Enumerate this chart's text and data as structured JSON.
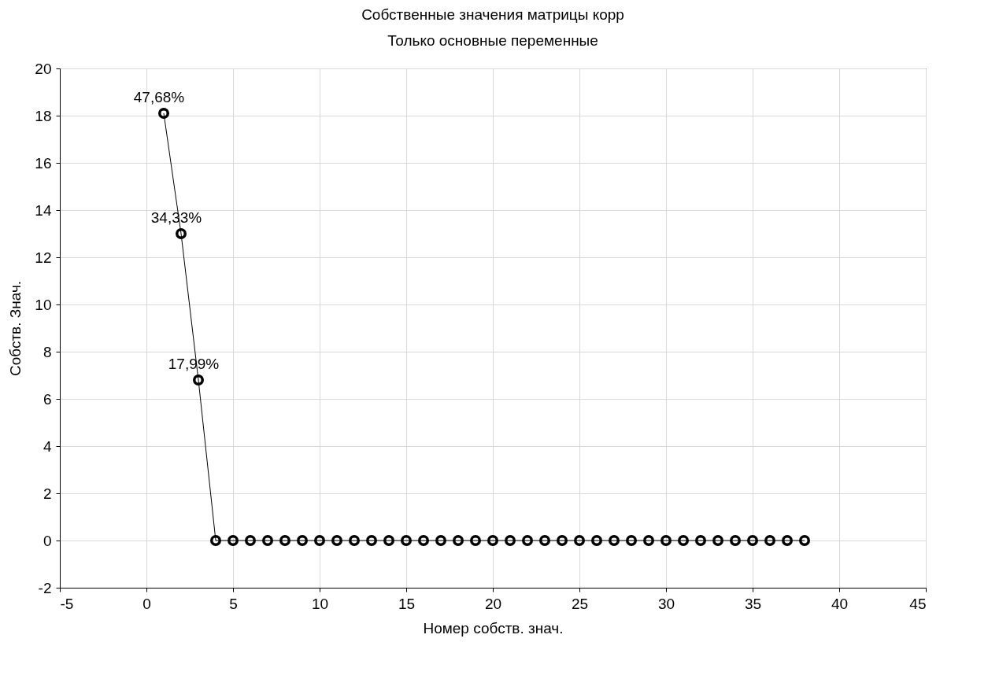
{
  "chart_data": {
    "type": "line",
    "title": "Собственные значения матрицы корр",
    "subtitle": "Только основные переменные",
    "xlabel": "Номер собств. знач.",
    "ylabel": "Собств. Знач.",
    "x": [
      1,
      2,
      3,
      4,
      5,
      6,
      7,
      8,
      9,
      10,
      11,
      12,
      13,
      14,
      15,
      16,
      17,
      18,
      19,
      20,
      21,
      22,
      23,
      24,
      25,
      26,
      27,
      28,
      29,
      30,
      31,
      32,
      33,
      34,
      35,
      36,
      37,
      38
    ],
    "series": [
      {
        "color": "#000000",
        "values": [
          18.1,
          13.0,
          6.8,
          0,
          0,
          0,
          0,
          0,
          0,
          0,
          0,
          0,
          0,
          0,
          0,
          0,
          0,
          0,
          0,
          0,
          0,
          0,
          0,
          0,
          0,
          0,
          0,
          0,
          0,
          0,
          0,
          0,
          0,
          0,
          0,
          0,
          0,
          0
        ]
      }
    ],
    "xlim": [
      -5,
      45
    ],
    "xticks": [
      -5,
      0,
      5,
      10,
      15,
      20,
      25,
      30,
      35,
      40,
      45
    ],
    "ylim": [
      -2,
      20
    ],
    "yticks": [
      -2,
      0,
      2,
      4,
      6,
      8,
      10,
      12,
      14,
      16,
      18,
      20
    ],
    "annotations": [
      {
        "text": "47,68%",
        "x": 1,
        "y": 18.1
      },
      {
        "text": "34,33%",
        "x": 2,
        "y": 13.0
      },
      {
        "text": "17,99%",
        "x": 3,
        "y": 6.8
      }
    ],
    "grid": true,
    "marker": "circle",
    "line_style": "solid"
  }
}
